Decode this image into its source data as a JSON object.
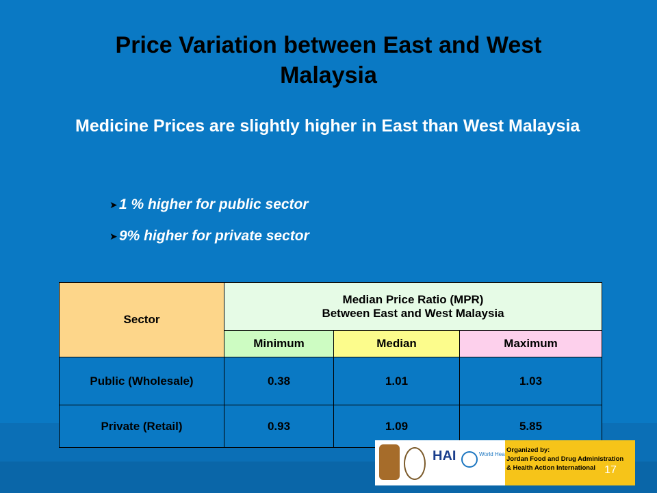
{
  "title": "Price Variation between  East and West Malaysia",
  "subtitle": "Medicine Prices are slightly higher in East than West Malaysia",
  "bullets": [
    "1 % higher for public sector",
    "9% higher for private sector"
  ],
  "table": {
    "sector_header": "Sector",
    "mpr_header_line1": "Median Price Ratio (MPR)",
    "mpr_header_line2": "Between East and West Malaysia",
    "sub_headers": [
      "Minimum",
      "Median",
      "Maximum"
    ],
    "rows": [
      {
        "sector": "Public (Wholesale)",
        "min": "0.38",
        "median": "1.01",
        "max": "1.03"
      },
      {
        "sector": "Private (Retail)",
        "min": "0.93",
        "median": "1.09",
        "max": "5.85"
      }
    ]
  },
  "footer": {
    "hai_logo": "HAI",
    "who_text": "World Health Organization",
    "organized_by": "Organized by:",
    "org_line1": "Jordan Food and Drug Administration",
    "org_line2": "& Health Action International",
    "page_number": "17"
  },
  "colors": {
    "background": "#0a79c4",
    "sector_header": "#fdd68a",
    "mpr_header": "#e6fbe6",
    "minimum": "#cdfcc2",
    "median": "#fcfc8c",
    "maximum": "#fdd0ec"
  }
}
